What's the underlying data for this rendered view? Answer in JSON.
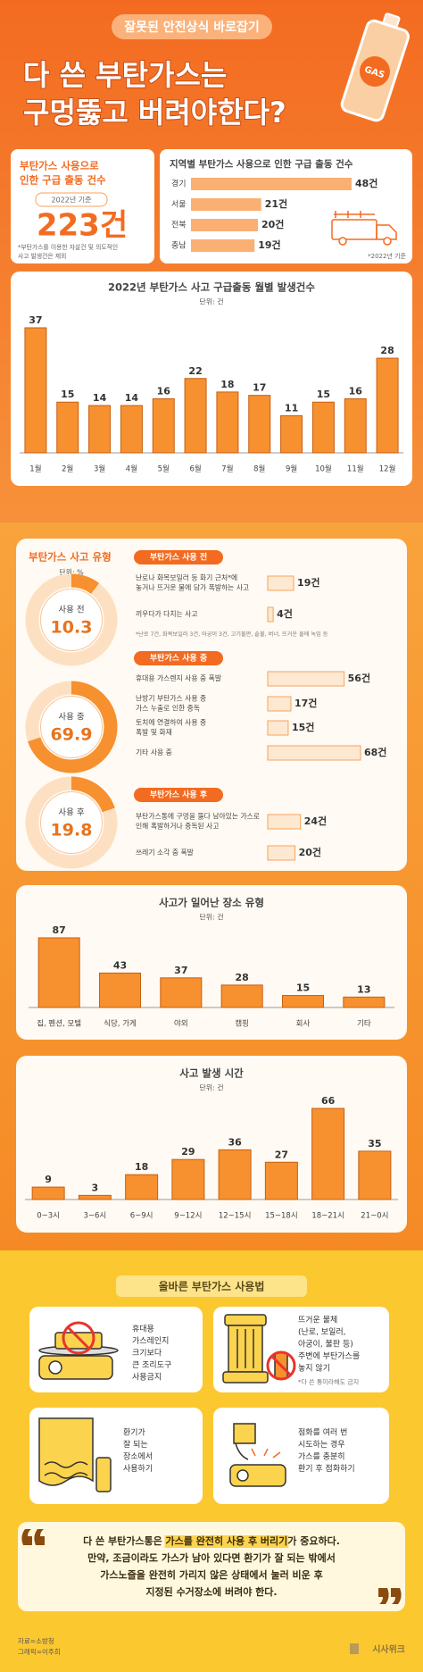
{
  "header": {
    "tagline": "잘못된 안전상식 바로잡기",
    "title_lines": [
      "다 쓴 부탄가스는",
      "구멍뚫고 버려야한다?"
    ],
    "icon_label": "GAS"
  },
  "summary": {
    "title_lines": [
      "부탄가스 사용으로",
      "인한 구급 출동 건수"
    ],
    "basis": "2022년 기준",
    "total": "223건",
    "note_lines": [
      "*부탄가스를 이용한 자살건 및 의도적인",
      "사고 발생건은 제외"
    ]
  },
  "chart_data": [
    {
      "type": "hbar",
      "title": "지역별 부탄가스 사용으로 인한 구급 출동 건수",
      "categories": [
        "경기",
        "서울",
        "전북",
        "충남"
      ],
      "values": [
        48,
        21,
        20,
        19
      ],
      "value_labels": [
        "48건",
        "21건",
        "20건",
        "19건"
      ],
      "note": "*2022년 기준",
      "color": "#fbb073"
    },
    {
      "type": "bar",
      "title": "2022년 부탄가스 사고 구급출동 월별 발생건수",
      "unit": "단위: 건",
      "categories": [
        "1월",
        "2월",
        "3월",
        "4월",
        "5월",
        "6월",
        "7월",
        "8월",
        "9월",
        "10월",
        "11월",
        "12월"
      ],
      "values": [
        37,
        15,
        14,
        14,
        16,
        22,
        18,
        17,
        11,
        15,
        16,
        28
      ],
      "color": "#f7902e"
    },
    {
      "type": "donut",
      "title": "부탄가스 사고 유형",
      "unit": "단위: %",
      "categories": [
        "사용 전",
        "사용 중",
        "사용 후"
      ],
      "values": [
        10.3,
        69.9,
        19.8
      ],
      "color": "#f7902e",
      "track_color": "#fde0c2"
    },
    {
      "type": "grouped-hbar",
      "color": "#fde8d2",
      "groups": [
        {
          "title": "부탄가스 사용 전",
          "categories": [
            [
              "난로나 화목보일러 등 화기 근처*에",
              "놓거나 뜨거운 물에 담가 폭발하는 사고"
            ],
            [
              "끼우다가 다치는 사고"
            ]
          ],
          "values": [
            19,
            4
          ],
          "value_labels": [
            "19건",
            "4건"
          ],
          "note": "*난로 7건, 화목보일러 3건, 아궁이 3건, 고기불판, 솥불, 버너, 뜨거운 물에 녹임 등"
        },
        {
          "title": "부탄가스 사용 중",
          "categories": [
            [
              "휴대용 가스렌지 사용 중 폭발"
            ],
            [
              "난방기 부탄가스 사용 중",
              "가스 누출로 인한 중독"
            ],
            [
              "토치에 연결하여 사용 중",
              "폭발 및 화재"
            ],
            [
              "기타 사용 중"
            ]
          ],
          "values": [
            56,
            17,
            15,
            68
          ],
          "value_labels": [
            "56건",
            "17건",
            "15건",
            "68건"
          ]
        },
        {
          "title": "부탄가스 사용 후",
          "categories": [
            [
              "부탄가스통에 구멍을 뚫다 남아있는 가스로",
              "인해 폭발하거나 중독된 사고"
            ],
            [
              "쓰레기 소각 중 폭발"
            ]
          ],
          "values": [
            24,
            20
          ],
          "value_labels": [
            "24건",
            "20건"
          ]
        }
      ]
    },
    {
      "type": "bar",
      "title": "사고가 일어난 장소 유형",
      "unit": "단위: 건",
      "categories": [
        "집, 펜션, 모텔",
        "식당, 가게",
        "야외",
        "캠핑",
        "회사",
        "기타"
      ],
      "values": [
        87,
        43,
        37,
        28,
        15,
        13
      ],
      "color": "#f7902e"
    },
    {
      "type": "bar",
      "title": "사고 발생 시간",
      "unit": "단위: 건",
      "categories": [
        "0~3시",
        "3~6시",
        "6~9시",
        "9~12시",
        "12~15시",
        "15~18시",
        "18~21시",
        "21~0시"
      ],
      "values": [
        9,
        3,
        18,
        29,
        36,
        27,
        66,
        35
      ],
      "color": "#f7902e"
    }
  ],
  "tips": {
    "title": "올바른 부탄가스 사용법",
    "items": [
      {
        "lines": [
          "휴대용",
          "가스레인지",
          "크기보다",
          "큰 조리도구",
          "사용금지"
        ]
      },
      {
        "lines": [
          "뜨거운 물체",
          "(난로, 보일러,",
          "아궁이, 불판 등)",
          "주변에 부탄가스를",
          "놓지 않기"
        ],
        "note": "*다 쓴 통이라해도 금지"
      },
      {
        "lines": [
          "환기가",
          "잘 되는",
          "장소에서",
          "사용하기"
        ]
      },
      {
        "lines": [
          "점화를 여러 번",
          "시도하는 경우",
          "가스를 충분히",
          "환기 후 점화하기"
        ]
      }
    ]
  },
  "conclusion": {
    "first_line": {
      "before": "다 쓴 부탄가스통은 ",
      "highlight": "가스를 완전히 사용 후 버리기",
      "after": "가 중요하다."
    },
    "lines": [
      "만약, 조금이라도 가스가 남아 있다면 환기가 잘 되는 밖에서",
      "가스노즐을 완전히 가리지 않은 상태에서 눌러 비운 후",
      "지정된 수거장소에 버려야 한다."
    ]
  },
  "footer": {
    "source": "자료=소방청",
    "graphic": "그래픽=이주희",
    "logo": "시사위크"
  }
}
